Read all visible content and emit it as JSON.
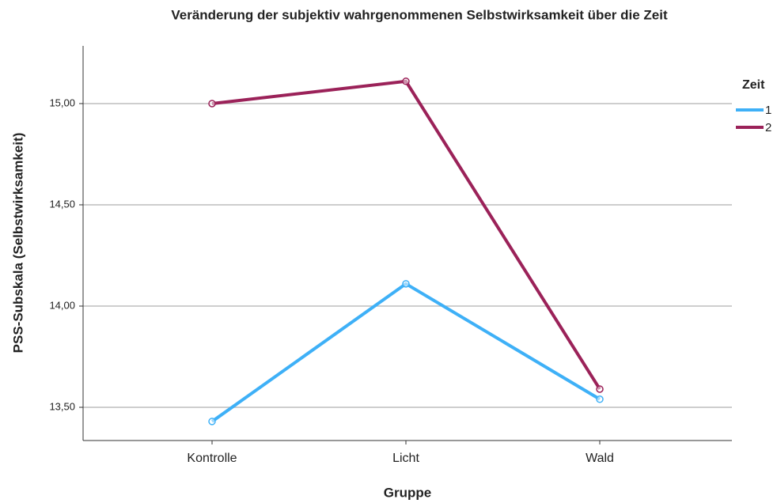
{
  "chart_data": {
    "type": "line",
    "title": "Veränderung der subjektiv wahrgenommenen Selbstwirksamkeit über die Zeit",
    "xlabel": "Gruppe",
    "ylabel": "PSS-Subskala (Selbstwirksamkeit)",
    "categories": [
      "Kontrolle",
      "Licht",
      "Wald"
    ],
    "series": [
      {
        "name": "1",
        "color": "#3eb0f7",
        "values": [
          13.43,
          14.11,
          13.54
        ]
      },
      {
        "name": "2",
        "color": "#9b2259",
        "values": [
          15.0,
          15.11,
          13.59
        ]
      }
    ],
    "ylim": [
      13.336,
      15.285
    ],
    "yticks": [
      {
        "value": 13.5,
        "label": "13,50"
      },
      {
        "value": 14.0,
        "label": "14,00"
      },
      {
        "value": 14.5,
        "label": "14,50"
      },
      {
        "value": 15.0,
        "label": "15,00"
      }
    ],
    "grid": true,
    "legend_title": "Zeit",
    "legend_position": "right"
  }
}
